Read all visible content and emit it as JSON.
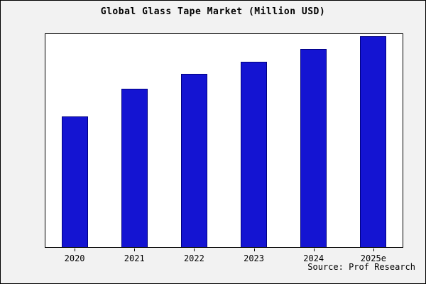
{
  "chart_data": {
    "type": "bar",
    "title": "Global Glass Tape Market (Million USD)",
    "categories": [
      "2020",
      "2021",
      "2022",
      "2023",
      "2024",
      "2025e"
    ],
    "values": [
      62,
      75,
      82,
      88,
      94,
      100
    ],
    "xlabel": "",
    "ylabel": "",
    "ylim": [
      0,
      101
    ],
    "grid": false,
    "legend_position": "none",
    "bar_color": "#1414d2",
    "bar_edge_color": "#000080",
    "annotations": []
  },
  "source": {
    "label": "Source: Prof Research"
  }
}
